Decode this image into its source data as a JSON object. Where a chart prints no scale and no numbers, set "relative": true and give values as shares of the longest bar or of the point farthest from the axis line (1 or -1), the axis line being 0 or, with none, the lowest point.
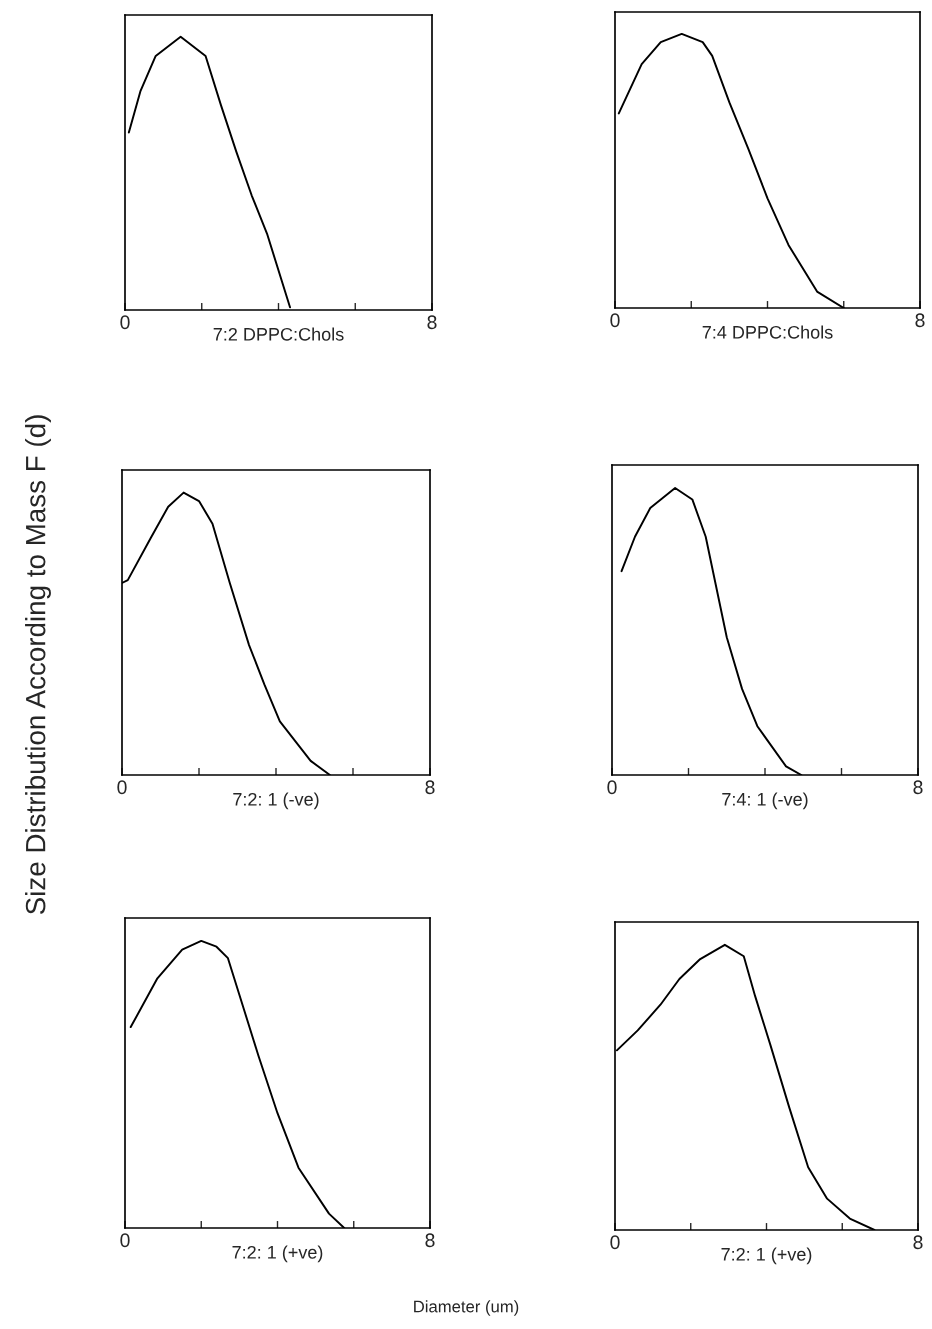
{
  "chart_data": [
    {
      "type": "line",
      "xlabel": "7:2 DPPC:Chols",
      "relative": true,
      "xlim": [
        0,
        8
      ],
      "xticks": [
        0,
        {
          "value": 2,
          "label": null
        },
        {
          "value": 4,
          "label": null
        },
        {
          "value": 6,
          "label": null
        },
        8
      ],
      "series": [
        {
          "color": "#000000",
          "x": [
            0.1,
            0.4,
            0.8,
            1.45,
            2.1,
            2.5,
            2.9,
            3.3,
            3.7,
            4.3
          ],
          "values": [
            0.65,
            0.8,
            0.93,
            1,
            0.93,
            0.75,
            0.58,
            0.42,
            0.28,
            0.01
          ]
        }
      ]
    },
    {
      "type": "line",
      "xlabel": "7:4 DPPC:Chols",
      "relative": true,
      "xlim": [
        0,
        8
      ],
      "xticks": [
        0,
        {
          "value": 2,
          "label": null
        },
        {
          "value": 4,
          "label": null
        },
        {
          "value": 6,
          "label": null
        },
        8
      ],
      "series": [
        {
          "color": "#000000",
          "x": [
            0.1,
            0.2,
            0.7,
            1.2,
            1.75,
            2.3,
            2.55,
            3.0,
            3.5,
            4.0,
            4.55,
            5.3,
            6.0
          ],
          "values": [
            0.71,
            0.74,
            0.89,
            0.97,
            1,
            0.97,
            0.92,
            0.75,
            0.58,
            0.4,
            0.23,
            0.06,
            0
          ]
        }
      ]
    },
    {
      "type": "line",
      "xlabel": "7:2: 1 (-ve)",
      "ylabel": "Size Distribution According to Mass F (d)",
      "relative": true,
      "xlim": [
        0,
        8
      ],
      "xticks": [
        0,
        {
          "value": 2,
          "label": null
        },
        {
          "value": 4,
          "label": null
        },
        {
          "value": 6,
          "label": null
        },
        8
      ],
      "series": [
        {
          "color": "#000000",
          "x": [
            0,
            0.15,
            0.75,
            1.2,
            1.6,
            2.0,
            2.35,
            2.8,
            3.3,
            3.7,
            4.1,
            4.9,
            5.4
          ],
          "values": [
            0.68,
            0.69,
            0.84,
            0.95,
            1,
            0.97,
            0.89,
            0.68,
            0.46,
            0.32,
            0.19,
            0.05,
            0
          ]
        }
      ]
    },
    {
      "type": "line",
      "xlabel": "7:4: 1 (-ve)",
      "relative": true,
      "xlim": [
        0,
        8
      ],
      "xticks": [
        0,
        {
          "value": 2,
          "label": null
        },
        {
          "value": 4,
          "label": null
        },
        {
          "value": 6,
          "label": null
        },
        8
      ],
      "series": [
        {
          "color": "#000000",
          "x": [
            0.25,
            0.6,
            1.0,
            1.65,
            2.1,
            2.45,
            3.0,
            3.4,
            3.8,
            4.55,
            4.95
          ],
          "values": [
            0.71,
            0.83,
            0.93,
            1,
            0.96,
            0.83,
            0.48,
            0.3,
            0.17,
            0.03,
            0
          ]
        }
      ]
    },
    {
      "type": "line",
      "xlabel": "7:2: 1 (+ve)",
      "relative": true,
      "xlim": [
        0,
        8
      ],
      "xticks": [
        0,
        {
          "value": 2,
          "label": null
        },
        {
          "value": 4,
          "label": null
        },
        {
          "value": 6,
          "label": null
        },
        8
      ],
      "series": [
        {
          "color": "#000000",
          "x": [
            0.15,
            0.85,
            1.5,
            2.0,
            2.4,
            2.7,
            3.1,
            3.5,
            4.0,
            4.55,
            5.35,
            5.75
          ],
          "values": [
            0.7,
            0.87,
            0.97,
            1,
            0.98,
            0.94,
            0.77,
            0.6,
            0.4,
            0.21,
            0.05,
            0
          ]
        }
      ]
    },
    {
      "type": "line",
      "xlabel": "7:2: 1 (+ve)",
      "relative": true,
      "xlim": [
        0,
        8
      ],
      "xticks": [
        0,
        {
          "value": 2,
          "label": null
        },
        {
          "value": 4,
          "label": null
        },
        {
          "value": 6,
          "label": null
        },
        8
      ],
      "annotations": [
        "Diameter (um)"
      ],
      "series": [
        {
          "color": "#000000",
          "x": [
            0.05,
            0.6,
            1.2,
            1.7,
            2.25,
            2.9,
            3.4,
            3.7,
            4.1,
            4.6,
            5.1,
            5.6,
            6.2,
            6.85
          ],
          "values": [
            0.63,
            0.7,
            0.79,
            0.88,
            0.95,
            1,
            0.96,
            0.82,
            0.65,
            0.43,
            0.22,
            0.11,
            0.04,
            0
          ]
        }
      ]
    }
  ]
}
